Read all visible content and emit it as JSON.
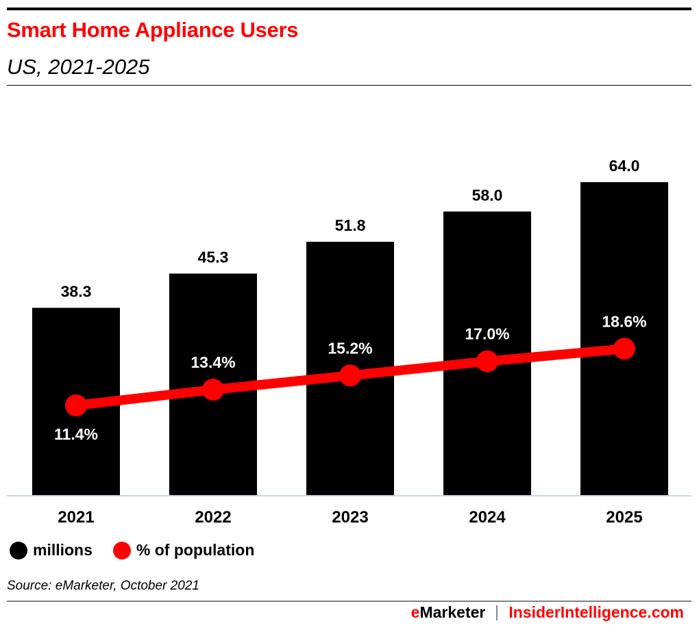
{
  "header": {
    "title": "Smart Home Appliance Users",
    "subtitle": "US, 2021-2025"
  },
  "legend": [
    {
      "label": "millions",
      "color": "#000000"
    },
    {
      "label": "% of population",
      "color": "#ff0000"
    }
  ],
  "footer": {
    "source": "Source: eMarketer, October 2021",
    "brand_e": "e",
    "brand_rest": "Marketer",
    "site": "InsiderIntelligence.com"
  },
  "colors": {
    "bar": "#000000",
    "line": "#ff0000",
    "axis": "#c8d6e5",
    "title": "#ff0000"
  },
  "chart_data": {
    "type": "bar",
    "title": "Smart Home Appliance Users",
    "subtitle": "US, 2021-2025",
    "xlabel": "",
    "ylabel": "",
    "categories": [
      "2021",
      "2022",
      "2023",
      "2024",
      "2025"
    ],
    "series": [
      {
        "name": "millions",
        "type": "bar",
        "values": [
          38.3,
          45.3,
          51.8,
          58.0,
          64.0
        ],
        "labels": [
          "38.3",
          "45.3",
          "51.8",
          "58.0",
          "64.0"
        ]
      },
      {
        "name": "% of population",
        "type": "line",
        "values": [
          11.4,
          13.4,
          15.2,
          17.0,
          18.6
        ],
        "labels": [
          "11.4%",
          "13.4%",
          "15.2%",
          "17.0%",
          "18.6%"
        ]
      }
    ],
    "ylim_bars": [
      0,
      64
    ],
    "ylim_line": [
      0,
      11.4
    ],
    "grid": false,
    "legend_position": "bottom-left"
  }
}
